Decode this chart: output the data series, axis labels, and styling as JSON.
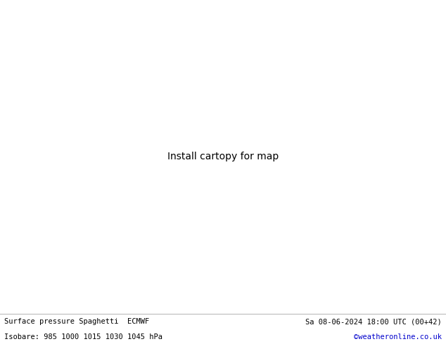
{
  "title_left": "Surface pressure Spaghetti  ECMWF",
  "title_right": "Sa 08-06-2024 18:00 UTC (00+42)",
  "subtitle": "Isobare: 985 1000 1015 1030 1045 hPa",
  "credit": "©weatheronline.co.uk",
  "land_color": "#c8f5c8",
  "sea_color": "#e0e0e0",
  "border_color": "#999999",
  "coastline_color": "#888888",
  "text_color": "#000000",
  "credit_color": "#0000cc",
  "figsize": [
    6.34,
    4.9
  ],
  "dpi": 100,
  "extent": [
    -14.5,
    10.5,
    33.5,
    51.5
  ],
  "spaghetti_colors": [
    "#888888",
    "#ff00ff",
    "#00ccff",
    "#ffaa00",
    "#33cc33",
    "#ff4444",
    "#dddd00",
    "#aa00aa",
    "#2255ff",
    "#ff8800",
    "#555555",
    "#ff88ff",
    "#00aaaa",
    "#ffcc44"
  ],
  "lw": 0.75
}
